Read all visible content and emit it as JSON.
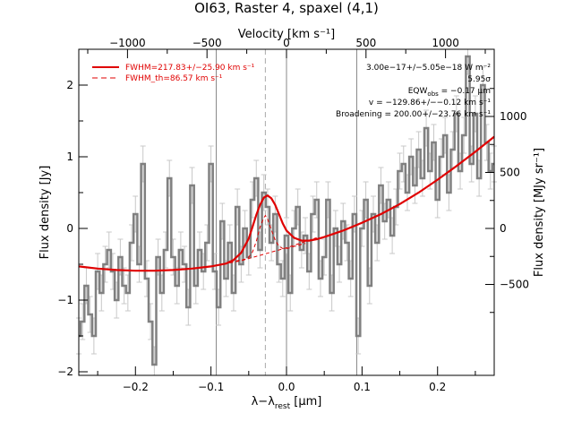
{
  "chart_data": {
    "type": "line",
    "title": "OI63, Raster 4, spaxel (4,1)",
    "xlabel": "λ−λ",
    "xlabel_sub": "rest",
    "xlabel_unit": " [μm]",
    "ylabel": "Flux density [Jy]",
    "top_xlabel": "Velocity [km s⁻¹]",
    "right_ylabel": "Flux density [MJy sr⁻¹]",
    "xlim": [
      -0.275,
      0.275
    ],
    "ylim": [
      -2.05,
      2.5
    ],
    "velocity_per_micron": 4750,
    "mjysr_per_jy": 640,
    "x_ticks": [
      -0.2,
      -0.1,
      0.0,
      0.1,
      0.2
    ],
    "x_tick_labels": [
      "−0.2",
      "−0.1",
      "0.0",
      "0.1",
      "0.2"
    ],
    "y_ticks": [
      -2,
      -1,
      0,
      1,
      2
    ],
    "y_tick_labels": [
      "−2",
      "−1",
      "0",
      "1",
      "2"
    ],
    "top_ticks": [
      -1000,
      -500,
      0,
      500,
      1000
    ],
    "top_tick_labels": [
      "−1000",
      "−500",
      "0",
      "500",
      "1000"
    ],
    "right_ticks": [
      -500,
      0,
      500,
      1000
    ],
    "right_tick_labels": [
      "−500",
      "0",
      "500",
      "1000"
    ],
    "vlines_solid": [
      -0.093,
      0.093
    ],
    "vline_dashed": -0.028,
    "series": [
      {
        "kind": "observed",
        "color": "#808080",
        "x": [
          -0.275,
          -0.27,
          -0.265,
          -0.26,
          -0.255,
          -0.25,
          -0.245,
          -0.24,
          -0.235,
          -0.23,
          -0.225,
          -0.22,
          -0.215,
          -0.21,
          -0.205,
          -0.2,
          -0.195,
          -0.19,
          -0.185,
          -0.18,
          -0.175,
          -0.17,
          -0.165,
          -0.16,
          -0.155,
          -0.15,
          -0.145,
          -0.14,
          -0.135,
          -0.13,
          -0.125,
          -0.12,
          -0.115,
          -0.11,
          -0.105,
          -0.1,
          -0.095,
          -0.09,
          -0.085,
          -0.08,
          -0.075,
          -0.07,
          -0.065,
          -0.06,
          -0.055,
          -0.05,
          -0.045,
          -0.04,
          -0.035,
          -0.03,
          -0.025,
          -0.02,
          -0.015,
          -0.01,
          -0.005,
          0.0,
          0.005,
          0.01,
          0.015,
          0.02,
          0.025,
          0.03,
          0.035,
          0.04,
          0.045,
          0.05,
          0.055,
          0.06,
          0.065,
          0.07,
          0.075,
          0.08,
          0.085,
          0.09,
          0.095,
          0.1,
          0.105,
          0.11,
          0.115,
          0.12,
          0.125,
          0.13,
          0.135,
          0.14,
          0.145,
          0.15,
          0.155,
          0.16,
          0.165,
          0.17,
          0.175,
          0.18,
          0.185,
          0.19,
          0.195,
          0.2,
          0.205,
          0.21,
          0.215,
          0.22,
          0.225,
          0.23,
          0.235,
          0.24,
          0.245,
          0.25,
          0.255,
          0.26,
          0.265,
          0.27,
          0.275
        ],
        "y": [
          -1.5,
          -1.3,
          -0.8,
          -1.2,
          -1.5,
          -0.6,
          -0.9,
          -0.5,
          -0.3,
          -0.6,
          -1.0,
          -0.4,
          -0.8,
          -0.9,
          -0.2,
          0.2,
          -0.5,
          0.9,
          -0.7,
          -1.3,
          -1.9,
          -0.4,
          -0.9,
          -0.3,
          0.7,
          -0.4,
          -0.8,
          -0.3,
          -0.5,
          -1.1,
          0.6,
          -0.8,
          -0.3,
          -0.6,
          -0.2,
          0.9,
          -0.6,
          -1.1,
          0.1,
          -0.7,
          -0.2,
          -0.9,
          0.3,
          -0.5,
          0.0,
          -0.4,
          0.4,
          0.7,
          -0.3,
          0.5,
          0.3,
          -0.2,
          0.2,
          -0.5,
          -0.7,
          -0.1,
          -0.9,
          0.0,
          0.3,
          -0.3,
          -0.1,
          -0.6,
          0.2,
          0.4,
          -0.7,
          -0.4,
          0.4,
          -0.9,
          0.0,
          -0.5,
          0.1,
          -0.2,
          -0.7,
          0.2,
          -1.5,
          0.0,
          0.4,
          -0.8,
          0.2,
          -0.2,
          0.6,
          0.1,
          0.4,
          -0.1,
          0.3,
          0.8,
          0.9,
          0.5,
          1.0,
          0.6,
          1.1,
          0.7,
          1.4,
          0.8,
          1.2,
          0.4,
          1.0,
          1.3,
          0.5,
          1.1,
          1.6,
          0.8,
          1.3,
          2.4,
          0.9,
          1.6,
          0.7,
          2.0,
          1.2,
          0.8,
          0.9
        ],
        "err": [
          0.25,
          0.25,
          0.25,
          0.25,
          0.25,
          0.25,
          0.25,
          0.25,
          0.25,
          0.25,
          0.25,
          0.25,
          0.25,
          0.25,
          0.25,
          0.25,
          0.25,
          0.25,
          0.25,
          0.25,
          0.25,
          0.25,
          0.25,
          0.25,
          0.25,
          0.25,
          0.25,
          0.25,
          0.25,
          0.25,
          0.25,
          0.25,
          0.25,
          0.25,
          0.25,
          0.25,
          0.25,
          0.25,
          0.25,
          0.25,
          0.25,
          0.25,
          0.25,
          0.25,
          0.25,
          0.25,
          0.25,
          0.25,
          0.25,
          0.25,
          0.25,
          0.25,
          0.25,
          0.25,
          0.25,
          0.25,
          0.25,
          0.25,
          0.25,
          0.25,
          0.25,
          0.25,
          0.25,
          0.25,
          0.25,
          0.25,
          0.25,
          0.25,
          0.25,
          0.25,
          0.25,
          0.25,
          0.25,
          0.25,
          0.25,
          0.25,
          0.25,
          0.25,
          0.25,
          0.25,
          0.25,
          0.25,
          0.25,
          0.25,
          0.25,
          0.25,
          0.25,
          0.25,
          0.25,
          0.25,
          0.25,
          0.25,
          0.25,
          0.25,
          0.25,
          0.25,
          0.25,
          0.25,
          0.25,
          0.25,
          0.25,
          0.25,
          0.25,
          0.25,
          0.25,
          0.25,
          0.25,
          0.25,
          0.25,
          0.25,
          0.25
        ]
      },
      {
        "kind": "fit",
        "name": "FWHM=217.83+/−25.90 km s⁻¹",
        "color": "#e00000",
        "style": "solid",
        "x": [
          -0.275,
          -0.25,
          -0.225,
          -0.2,
          -0.175,
          -0.15,
          -0.125,
          -0.1,
          -0.09,
          -0.08,
          -0.07,
          -0.06,
          -0.05,
          -0.045,
          -0.04,
          -0.035,
          -0.03,
          -0.025,
          -0.02,
          -0.015,
          -0.01,
          -0.005,
          0.0,
          0.01,
          0.02,
          0.03,
          0.04,
          0.05,
          0.075,
          0.1,
          0.125,
          0.15,
          0.175,
          0.2,
          0.225,
          0.25,
          0.275
        ],
        "y": [
          -0.53,
          -0.56,
          -0.58,
          -0.59,
          -0.59,
          -0.58,
          -0.56,
          -0.53,
          -0.51,
          -0.49,
          -0.44,
          -0.34,
          -0.14,
          0.02,
          0.19,
          0.33,
          0.43,
          0.46,
          0.42,
          0.33,
          0.2,
          0.07,
          -0.03,
          -0.13,
          -0.17,
          -0.17,
          -0.15,
          -0.12,
          -0.03,
          0.08,
          0.2,
          0.34,
          0.5,
          0.68,
          0.87,
          1.07,
          1.28
        ]
      },
      {
        "kind": "fit-component",
        "name": "FWHM_th=86.57 km s⁻¹",
        "color": "#e00000",
        "style": "dashed",
        "x": [
          -0.075,
          -0.07,
          -0.065,
          -0.06,
          -0.055,
          -0.05,
          -0.045,
          -0.04,
          -0.035,
          -0.03,
          -0.028,
          -0.025,
          -0.02,
          -0.015,
          -0.01,
          -0.005,
          0.0,
          0.005,
          0.01,
          0.015,
          0.02,
          0.025
        ],
        "y": [
          -0.47,
          -0.46,
          -0.45,
          -0.44,
          -0.43,
          -0.4,
          -0.33,
          -0.18,
          0.02,
          0.15,
          0.18,
          0.13,
          -0.02,
          -0.16,
          -0.25,
          -0.28,
          -0.28,
          -0.27,
          -0.25,
          -0.24,
          -0.22,
          -0.21
        ]
      },
      {
        "kind": "continuum",
        "color": "#e00000",
        "style": "dashed",
        "x": [
          -0.1,
          -0.08,
          -0.06,
          -0.04,
          -0.02,
          0.0,
          0.02,
          0.04
        ],
        "y": [
          -0.53,
          -0.49,
          -0.45,
          -0.39,
          -0.33,
          -0.27,
          -0.2,
          -0.13
        ]
      }
    ],
    "annotations": [
      "3.00e−17+/−5.05e−18 W m⁻²",
      "5.95σ",
      "EQW",
      "obs",
      " = −0.17 μm",
      "v = −129.86+/−−0.12 km s⁻¹",
      "Broadening = 200.00+/−23.76 km s⁻¹"
    ]
  }
}
